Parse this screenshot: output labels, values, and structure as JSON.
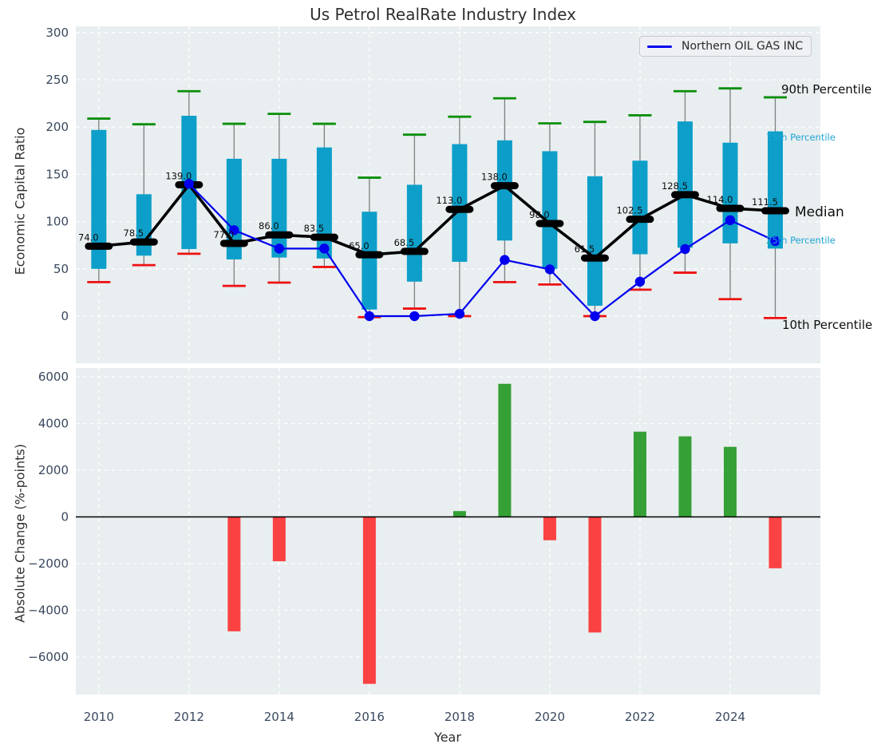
{
  "title": "Us Petrol RealRate Industry Index",
  "legend": {
    "series_label": "Northern OIL GAS INC"
  },
  "percentile_labels": {
    "p90": "90th Percentile",
    "p75": "75th Percentile",
    "median": "Median",
    "p25": "25th Percentile",
    "p10": "10th Percentile"
  },
  "chart_data": [
    {
      "type": "boxplot+line",
      "title": "Us Petrol RealRate Industry Index",
      "ylabel": "Economic Capital Ratio",
      "years": [
        2010,
        2011,
        2012,
        2013,
        2014,
        2015,
        2016,
        2017,
        2018,
        2019,
        2020,
        2021,
        2022,
        2023,
        2024,
        2025
      ],
      "percentiles": {
        "p90": [
          209,
          203,
          238,
          203.5,
          214,
          203.5,
          146.5,
          192,
          211,
          230.5,
          204,
          205.5,
          212.5,
          238,
          241,
          231.5
        ],
        "p75": [
          197,
          129,
          212,
          166.5,
          166.5,
          178.5,
          110.5,
          139,
          182,
          186,
          174.5,
          148,
          164.5,
          206,
          183.5,
          195.5
        ],
        "median": [
          74.0,
          78.5,
          139.0,
          77.0,
          86.0,
          83.5,
          65.0,
          68.5,
          113.0,
          138.0,
          98.0,
          61.5,
          102.5,
          128.5,
          114.0,
          111.5
        ],
        "p25": [
          50,
          64,
          71,
          60,
          62,
          61,
          7,
          36.5,
          57.5,
          80,
          50,
          11,
          65.5,
          72.5,
          77,
          71.5
        ],
        "p10": [
          36,
          54,
          66,
          32,
          35.5,
          52,
          -1,
          8,
          0,
          36,
          33.5,
          0,
          28,
          46,
          18,
          -2
        ]
      },
      "series": [
        {
          "name": "Northern OIL GAS INC",
          "values": [
            null,
            null,
            140,
            91,
            71.5,
            71.5,
            0,
            0,
            2.5,
            59.5,
            49.5,
            0,
            36.5,
            71,
            101.5,
            79.5
          ]
        }
      ],
      "yticks": [
        0,
        50,
        100,
        150,
        200,
        250,
        300
      ],
      "xticks": [
        2010,
        2012,
        2014,
        2016,
        2018,
        2020,
        2022,
        2024
      ],
      "ylim": [
        -50,
        307
      ],
      "grid": true,
      "legend_position": "upper right",
      "colors": {
        "box": "#0d9fc9",
        "whisker": "#7f7f7f",
        "p90_cap": "#0a8f0a",
        "p10_cap": "#ee1111",
        "median": "#000000",
        "company_line": "#0000ee",
        "plot_bg": "#e9eef0",
        "grid": "#ffffff",
        "tick": "#39495e"
      }
    },
    {
      "type": "bar",
      "ylabel": "Absolute Change (%-points)",
      "xlabel": "Year",
      "years": [
        2010,
        2011,
        2012,
        2013,
        2014,
        2015,
        2016,
        2017,
        2018,
        2019,
        2020,
        2021,
        2022,
        2023,
        2024,
        2025
      ],
      "values": [
        0,
        0,
        0,
        -4900,
        -1900,
        0,
        -7150,
        0,
        250,
        5700,
        -1000,
        -4950,
        3650,
        3450,
        3000,
        -2200
      ],
      "yticks": [
        6000,
        4000,
        2000,
        0,
        -2000,
        -4000,
        -6000
      ],
      "ytick_labels": [
        "6000",
        "4000",
        "2000",
        "0",
        "−2000",
        "−4000",
        "−6000"
      ],
      "xticks": [
        2010,
        2012,
        2014,
        2016,
        2018,
        2020,
        2022,
        2024
      ],
      "ylim": [
        -7607,
        6376
      ],
      "grid": true,
      "colors": {
        "positive": "#35a035",
        "negative": "#fb4242",
        "zero_line": "#000000",
        "plot_bg": "#e9eef0",
        "grid": "#ffffff",
        "tick": "#39495e"
      }
    }
  ]
}
